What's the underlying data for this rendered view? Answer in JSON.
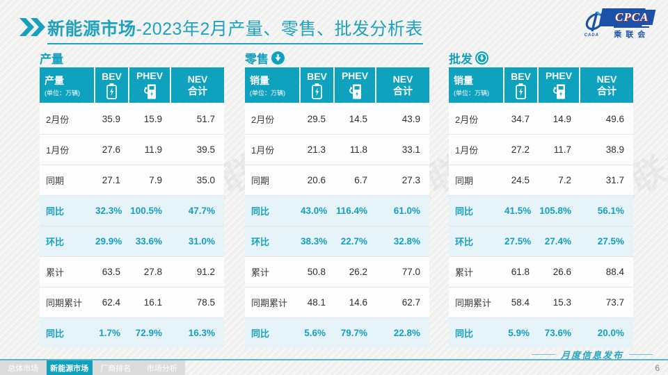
{
  "header": {
    "title_bold": "新能源市场",
    "title_rest": "-2023年2月产量、零售、批发分析表",
    "chevron_icon": "double-chevron-right-icon",
    "logo": {
      "cpca": "CPCA",
      "org": "乘联会",
      "emblem_sub": "CADA"
    }
  },
  "colors": {
    "accent": "#0fa2bf",
    "highlight_row_bg": "#e6f3f8",
    "tab_bar_bg": "#dcdcdc",
    "logo_blue": "#1b52a8"
  },
  "watermark_text": "CPCA 乘联会",
  "icon_names": {
    "bev": "battery-icon",
    "phev": "charger-icon",
    "retail_arrow": "arrow-down-circle-filled-icon",
    "wholesale_arrow": "arrow-down-circle-ring-icon"
  },
  "tables": [
    {
      "key": "production",
      "section": "产量",
      "arrow": "none",
      "col0": {
        "title": "产量",
        "unit": "(单位：万辆)"
      },
      "columns": [
        {
          "label": "BEV",
          "icon": "battery-icon"
        },
        {
          "label": "PHEV",
          "icon": "charger-icon"
        },
        {
          "label": "NEV",
          "label2": "合计"
        }
      ],
      "rows": [
        {
          "label": "2月份",
          "values": [
            "35.9",
            "15.9",
            "51.7"
          ],
          "highlight": false
        },
        {
          "label": "1月份",
          "values": [
            "27.6",
            "11.9",
            "39.5"
          ],
          "highlight": false
        },
        {
          "label": "同期",
          "values": [
            "27.1",
            "7.9",
            "35.0"
          ],
          "highlight": false
        },
        {
          "label": "同比",
          "values": [
            "32.3%",
            "100.5%",
            "47.7%"
          ],
          "highlight": true
        },
        {
          "label": "环比",
          "values": [
            "29.9%",
            "33.6%",
            "31.0%"
          ],
          "highlight": true
        },
        {
          "label": "累计",
          "values": [
            "63.5",
            "27.8",
            "91.2"
          ],
          "highlight": false
        },
        {
          "label": "同期累计",
          "values": [
            "62.4",
            "16.1",
            "78.5"
          ],
          "highlight": false
        },
        {
          "label": "同比",
          "values": [
            "1.7%",
            "72.9%",
            "16.3%"
          ],
          "highlight": true
        }
      ]
    },
    {
      "key": "retail",
      "section": "零售",
      "arrow": "filled",
      "col0": {
        "title": "销量",
        "unit": "(单位：万辆)"
      },
      "columns": [
        {
          "label": "BEV",
          "icon": "battery-icon"
        },
        {
          "label": "PHEV",
          "icon": "charger-icon"
        },
        {
          "label": "NEV",
          "label2": "合计"
        }
      ],
      "rows": [
        {
          "label": "2月份",
          "values": [
            "29.5",
            "14.5",
            "43.9"
          ],
          "highlight": false
        },
        {
          "label": "1月份",
          "values": [
            "21.3",
            "11.8",
            "33.1"
          ],
          "highlight": false
        },
        {
          "label": "同期",
          "values": [
            "20.6",
            "6.7",
            "27.3"
          ],
          "highlight": false
        },
        {
          "label": "同比",
          "values": [
            "43.0%",
            "116.4%",
            "61.0%"
          ],
          "highlight": true
        },
        {
          "label": "环比",
          "values": [
            "38.3%",
            "22.7%",
            "32.8%"
          ],
          "highlight": true
        },
        {
          "label": "累计",
          "values": [
            "50.8",
            "26.2",
            "77.0"
          ],
          "highlight": false
        },
        {
          "label": "同期累计",
          "values": [
            "48.1",
            "14.6",
            "62.7"
          ],
          "highlight": false
        },
        {
          "label": "同比",
          "values": [
            "5.6%",
            "79.7%",
            "22.8%"
          ],
          "highlight": true
        }
      ]
    },
    {
      "key": "wholesale",
      "section": "批发",
      "arrow": "ring",
      "col0": {
        "title": "销量",
        "unit": "(单位：万辆)"
      },
      "columns": [
        {
          "label": "BEV",
          "icon": "battery-icon"
        },
        {
          "label": "PHEV",
          "icon": "charger-icon"
        },
        {
          "label": "NEV",
          "label2": "合计"
        }
      ],
      "rows": [
        {
          "label": "2月份",
          "values": [
            "34.7",
            "14.9",
            "49.6"
          ],
          "highlight": false
        },
        {
          "label": "1月份",
          "values": [
            "27.2",
            "11.7",
            "38.9"
          ],
          "highlight": false
        },
        {
          "label": "同期",
          "values": [
            "24.5",
            "7.2",
            "31.7"
          ],
          "highlight": false
        },
        {
          "label": "同比",
          "values": [
            "41.5%",
            "105.8%",
            "56.1%"
          ],
          "highlight": true
        },
        {
          "label": "环比",
          "values": [
            "27.5%",
            "27.4%",
            "27.5%"
          ],
          "highlight": true
        },
        {
          "label": "累计",
          "values": [
            "61.8",
            "26.6",
            "88.4"
          ],
          "highlight": false
        },
        {
          "label": "同期累计",
          "values": [
            "58.4",
            "15.3",
            "73.7"
          ],
          "highlight": false
        },
        {
          "label": "同比",
          "values": [
            "5.9%",
            "73.6%",
            "20.0%"
          ],
          "highlight": true
        }
      ]
    }
  ],
  "footer": {
    "tabs": [
      {
        "label": "总体市场",
        "active": false
      },
      {
        "label": "新能源市场",
        "active": true
      },
      {
        "label": "厂商排名",
        "active": false
      },
      {
        "label": "市场分析",
        "active": false
      }
    ],
    "note": "月度信息发布",
    "page_number": "6"
  }
}
